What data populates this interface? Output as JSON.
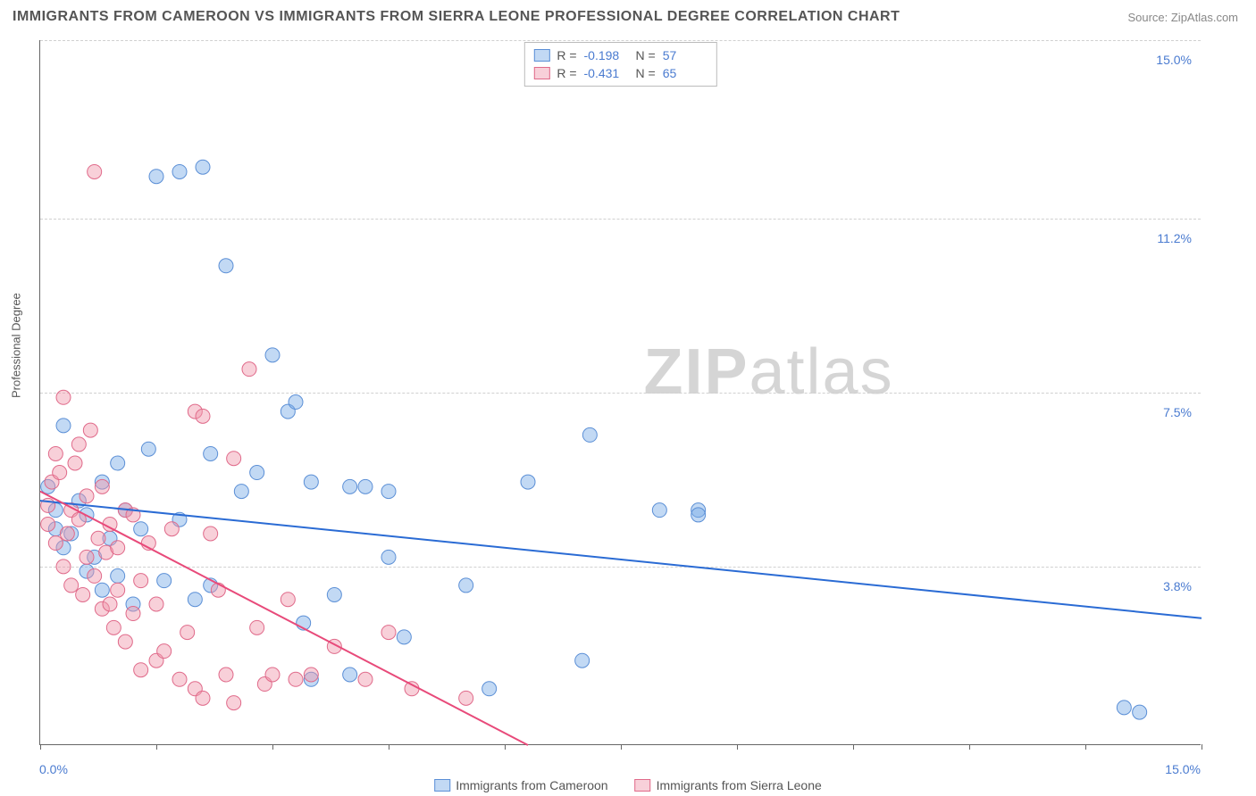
{
  "title": "IMMIGRANTS FROM CAMEROON VS IMMIGRANTS FROM SIERRA LEONE PROFESSIONAL DEGREE CORRELATION CHART",
  "source": "Source: ZipAtlas.com",
  "watermark_part1": "ZIP",
  "watermark_part2": "atlas",
  "y_axis_label": "Professional Degree",
  "x_axis": {
    "min": 0,
    "max": 15,
    "min_label": "0.0%",
    "max_label": "15.0%"
  },
  "y_axis": {
    "min": 0,
    "max": 15,
    "ticks": [
      {
        "v": 3.8,
        "label": "3.8%"
      },
      {
        "v": 7.5,
        "label": "7.5%"
      },
      {
        "v": 11.2,
        "label": "11.2%"
      },
      {
        "v": 15.0,
        "label": "15.0%"
      }
    ]
  },
  "series": [
    {
      "name": "Immigrants from Cameroon",
      "color_fill": "rgba(120,170,230,0.45)",
      "color_stroke": "#5b8fd6",
      "line_color": "#2a6bd4",
      "R": "-0.198",
      "N": "57",
      "trend": {
        "x1": 0,
        "y1": 5.2,
        "x2": 15,
        "y2": 2.7
      },
      "points": [
        [
          0.1,
          5.5
        ],
        [
          0.2,
          4.6
        ],
        [
          0.2,
          5.0
        ],
        [
          0.3,
          4.2
        ],
        [
          0.3,
          6.8
        ],
        [
          0.4,
          4.5
        ],
        [
          0.5,
          5.2
        ],
        [
          0.6,
          3.7
        ],
        [
          0.6,
          4.9
        ],
        [
          0.7,
          4.0
        ],
        [
          0.8,
          3.3
        ],
        [
          0.8,
          5.6
        ],
        [
          0.9,
          4.4
        ],
        [
          1.0,
          6.0
        ],
        [
          1.0,
          3.6
        ],
        [
          1.1,
          5.0
        ],
        [
          1.2,
          3.0
        ],
        [
          1.3,
          4.6
        ],
        [
          1.4,
          6.3
        ],
        [
          1.5,
          12.1
        ],
        [
          1.6,
          3.5
        ],
        [
          1.8,
          12.2
        ],
        [
          1.8,
          4.8
        ],
        [
          2.0,
          3.1
        ],
        [
          2.1,
          12.3
        ],
        [
          2.2,
          6.2
        ],
        [
          2.2,
          3.4
        ],
        [
          2.4,
          10.2
        ],
        [
          2.6,
          5.4
        ],
        [
          2.8,
          5.8
        ],
        [
          3.0,
          8.3
        ],
        [
          3.2,
          7.1
        ],
        [
          3.3,
          7.3
        ],
        [
          3.4,
          2.6
        ],
        [
          3.5,
          1.4
        ],
        [
          3.5,
          5.6
        ],
        [
          3.8,
          3.2
        ],
        [
          4.0,
          5.5
        ],
        [
          4.0,
          1.5
        ],
        [
          4.2,
          5.5
        ],
        [
          4.5,
          5.4
        ],
        [
          4.5,
          4.0
        ],
        [
          4.7,
          2.3
        ],
        [
          5.5,
          3.4
        ],
        [
          5.8,
          1.2
        ],
        [
          6.3,
          5.6
        ],
        [
          7.0,
          1.8
        ],
        [
          7.1,
          6.6
        ],
        [
          8.0,
          5.0
        ],
        [
          8.5,
          5.0
        ],
        [
          8.5,
          4.9
        ],
        [
          14.0,
          0.8
        ],
        [
          14.2,
          0.7
        ]
      ]
    },
    {
      "name": "Immigrants from Sierra Leone",
      "color_fill": "rgba(240,150,170,0.45)",
      "color_stroke": "#e06a8a",
      "line_color": "#e84a7a",
      "R": "-0.431",
      "N": "65",
      "trend": {
        "x1": 0,
        "y1": 5.4,
        "x2": 6.3,
        "y2": 0
      },
      "points": [
        [
          0.1,
          5.1
        ],
        [
          0.1,
          4.7
        ],
        [
          0.15,
          5.6
        ],
        [
          0.2,
          4.3
        ],
        [
          0.2,
          6.2
        ],
        [
          0.25,
          5.8
        ],
        [
          0.3,
          3.8
        ],
        [
          0.3,
          7.4
        ],
        [
          0.35,
          4.5
        ],
        [
          0.4,
          5.0
        ],
        [
          0.4,
          3.4
        ],
        [
          0.45,
          6.0
        ],
        [
          0.5,
          4.8
        ],
        [
          0.5,
          6.4
        ],
        [
          0.55,
          3.2
        ],
        [
          0.6,
          5.3
        ],
        [
          0.6,
          4.0
        ],
        [
          0.65,
          6.7
        ],
        [
          0.7,
          12.2
        ],
        [
          0.7,
          3.6
        ],
        [
          0.75,
          4.4
        ],
        [
          0.8,
          2.9
        ],
        [
          0.8,
          5.5
        ],
        [
          0.85,
          4.1
        ],
        [
          0.9,
          3.0
        ],
        [
          0.9,
          4.7
        ],
        [
          0.95,
          2.5
        ],
        [
          1.0,
          4.2
        ],
        [
          1.0,
          3.3
        ],
        [
          1.1,
          5.0
        ],
        [
          1.1,
          2.2
        ],
        [
          1.2,
          4.9
        ],
        [
          1.2,
          2.8
        ],
        [
          1.3,
          1.6
        ],
        [
          1.3,
          3.5
        ],
        [
          1.4,
          4.3
        ],
        [
          1.5,
          1.8
        ],
        [
          1.5,
          3.0
        ],
        [
          1.6,
          2.0
        ],
        [
          1.7,
          4.6
        ],
        [
          1.8,
          1.4
        ],
        [
          1.9,
          2.4
        ],
        [
          2.0,
          7.1
        ],
        [
          2.0,
          1.2
        ],
        [
          2.1,
          1.0
        ],
        [
          2.1,
          7.0
        ],
        [
          2.2,
          4.5
        ],
        [
          2.3,
          3.3
        ],
        [
          2.4,
          1.5
        ],
        [
          2.5,
          6.1
        ],
        [
          2.5,
          0.9
        ],
        [
          2.7,
          8.0
        ],
        [
          2.8,
          2.5
        ],
        [
          2.9,
          1.3
        ],
        [
          3.0,
          1.5
        ],
        [
          3.2,
          3.1
        ],
        [
          3.3,
          1.4
        ],
        [
          3.5,
          1.5
        ],
        [
          3.8,
          2.1
        ],
        [
          4.2,
          1.4
        ],
        [
          4.5,
          2.4
        ],
        [
          4.8,
          1.2
        ],
        [
          5.5,
          1.0
        ]
      ]
    }
  ],
  "marker_radius": 8,
  "line_width": 2,
  "x_tick_positions": [
    0,
    1.5,
    3,
    4.5,
    6,
    7.5,
    9,
    10.5,
    12,
    13.5,
    15
  ],
  "grid_color": "#d0d0d0",
  "background_color": "#ffffff"
}
